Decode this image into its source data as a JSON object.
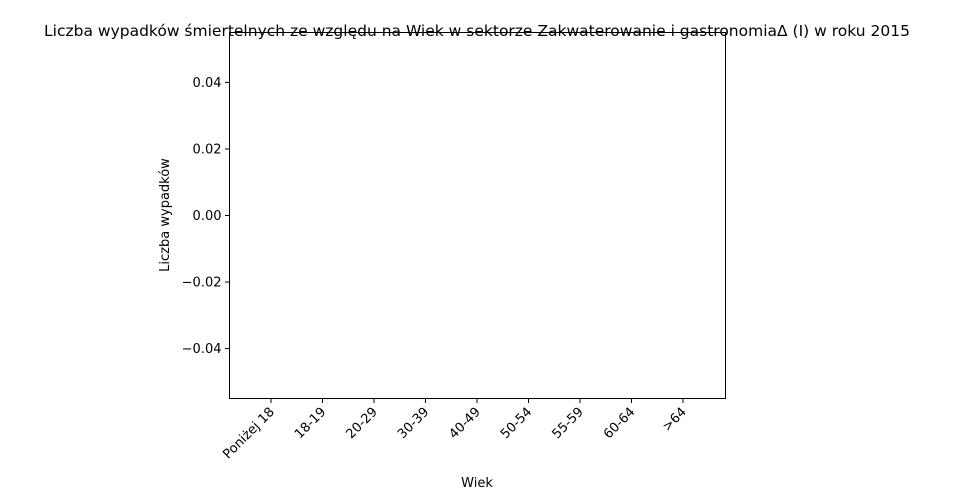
{
  "chart_data": {
    "type": "bar",
    "title": "Liczba wypadków śmiertelnych ze względu na Wiek w sektorze Zakwaterowanie i gastronomiaΔ (I) w roku 2015",
    "xlabel": "Wiek",
    "ylabel": "Liczba wypadków",
    "categories": [
      "Poniżej 18",
      "18-19",
      "20-29",
      "30-39",
      "40-49",
      "50-54",
      "55-59",
      "60-64",
      ">64"
    ],
    "values": [
      0,
      0,
      0,
      0,
      0,
      0,
      0,
      0,
      0
    ],
    "ylim": [
      -0.055,
      0.055
    ],
    "yticks": [
      0.04,
      0.02,
      0.0,
      -0.02,
      -0.04
    ],
    "ytick_labels": [
      "0.04",
      "0.02",
      "0.00",
      "−0.02",
      "−0.04"
    ],
    "grid": false,
    "bar_color": "#1f77b4"
  }
}
